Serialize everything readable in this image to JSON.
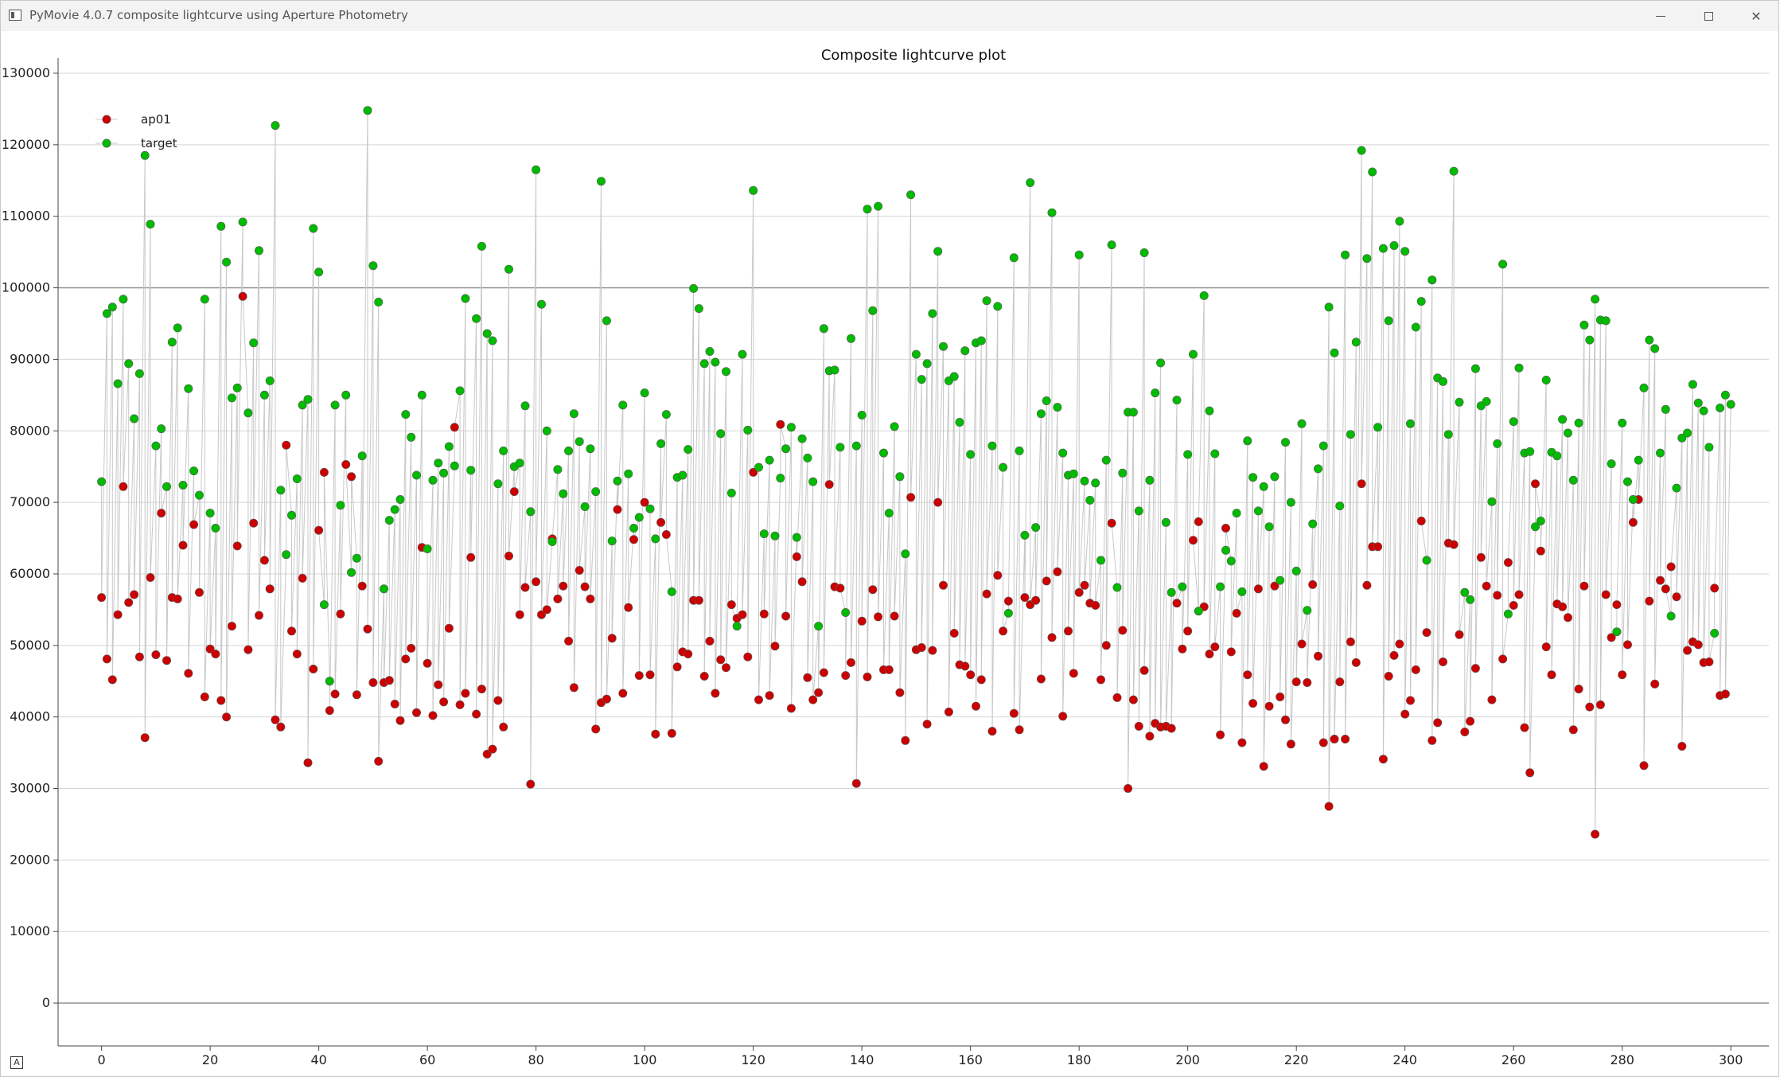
{
  "window": {
    "title": "PyMovie 4.0.7 composite lightcurve using Aperture Photometry",
    "minimize_icon": "minimize-icon",
    "maximize_icon": "maximize-icon",
    "close_icon": "close-icon",
    "close_glyph": "✕"
  },
  "status": {
    "corner_label": "A"
  },
  "chart_data": {
    "type": "scatter",
    "title": "Composite lightcurve plot",
    "xlabel": "",
    "ylabel": "",
    "xlim": [
      -8,
      307
    ],
    "ylim": [
      -6000,
      131000
    ],
    "xticks": [
      0,
      20,
      40,
      60,
      80,
      100,
      120,
      140,
      160,
      180,
      200,
      220,
      240,
      260,
      280,
      300
    ],
    "yticks": [
      0,
      10000,
      20000,
      30000,
      40000,
      50000,
      60000,
      70000,
      80000,
      90000,
      100000,
      110000,
      120000,
      130000
    ],
    "grid": true,
    "legend_position": "top-left",
    "connector_color": "#c8c8c8",
    "series": [
      {
        "name": "ap01",
        "color": "#cc0000",
        "x_start": 0,
        "values": [
          56700,
          48100,
          45200,
          54300,
          72200,
          56000,
          57100,
          48400,
          37100,
          59500,
          48700,
          68500,
          47900,
          56700,
          56500,
          64000,
          46100,
          66900,
          57400,
          42800,
          49500,
          48800,
          42300,
          40000,
          52700,
          63900,
          98800,
          49400,
          67100,
          54200,
          61900,
          57900,
          39600,
          38600,
          78000,
          52000,
          48800,
          59400,
          33600,
          46700,
          66100,
          74200,
          40900,
          43200,
          54400,
          75300,
          73600,
          43100,
          58300,
          52300,
          44800,
          33800,
          44800,
          45100,
          41800,
          39500,
          48100,
          49600,
          40600,
          63700,
          47500,
          40200,
          44500,
          42100,
          52400,
          80500,
          41700,
          43300,
          62300,
          40400,
          43900,
          34800,
          35500,
          42300,
          38600,
          62500,
          71500,
          54300,
          58100,
          30600,
          58900,
          54300,
          55000,
          64900,
          56500,
          58300,
          50600,
          44100,
          60500,
          58200,
          56500,
          38300,
          42000,
          42500,
          51000,
          69000,
          43300,
          55300,
          64800,
          45800,
          70000,
          45900,
          37600,
          67200,
          65500,
          37700,
          47000,
          49100,
          48800,
          56300,
          56300,
          45700,
          50600,
          43300,
          48000,
          46900,
          55700,
          53800,
          54300,
          48400,
          74200,
          42400,
          54400,
          43000,
          49900,
          80900,
          54100,
          41200,
          62400,
          58900,
          45500,
          42400,
          43400,
          46200,
          72500,
          58200,
          58000,
          45800,
          47600,
          30700,
          53400,
          45600,
          57800,
          54000,
          46600,
          46600,
          54100,
          43400,
          36700,
          70700,
          49400,
          49700,
          39000,
          49300,
          70000,
          58400,
          40700,
          51700,
          47300,
          47100,
          45900,
          41500,
          45200,
          57200,
          38000,
          59800,
          52000,
          56200,
          40500,
          38200,
          56700,
          55700,
          56300,
          45300,
          59000,
          51100,
          60300,
          40100,
          52000,
          46100,
          57400,
          58400,
          55900,
          55600,
          45200,
          50000,
          67100,
          42700,
          52100,
          30000,
          42400,
          38700,
          46500,
          37300,
          39100,
          38600,
          38700,
          38400,
          55900,
          49500,
          52000,
          64700,
          67300,
          55400,
          48800,
          49800,
          37500,
          66400,
          49100,
          54500,
          36400,
          45900,
          41900,
          57900,
          33100,
          41500,
          58300,
          42800,
          39600,
          36200,
          44900,
          50200,
          44800,
          58500,
          48500,
          36400,
          27500,
          36900,
          44900,
          36900,
          50500,
          47600,
          72600,
          58400,
          63800,
          63800,
          34100,
          45700,
          48600,
          50200,
          40400,
          42300,
          46600,
          67400,
          51800,
          36700,
          39200,
          47700,
          64300,
          64100,
          51500,
          37900,
          39400,
          46800,
          62300,
          58300,
          42400,
          57000,
          48100,
          61600,
          55600,
          57100,
          38500,
          32200,
          72600,
          63200,
          49800,
          45900,
          55800,
          55400,
          53900,
          38200,
          43900,
          58300,
          41400,
          23600,
          41700,
          57100,
          51100,
          55700,
          45900,
          50100,
          67200,
          70400,
          33200,
          56200,
          44600,
          59100,
          57900,
          61000,
          56800,
          35900,
          49300,
          50500,
          50100,
          47600,
          47700,
          58000,
          43000,
          43200
        ]
      },
      {
        "name": "target",
        "color": "#00bb00",
        "x_start": 0,
        "values": [
          72900,
          96400,
          97300,
          86600,
          98400,
          89400,
          81700,
          88000,
          118500,
          108900,
          77900,
          80300,
          72200,
          92400,
          94400,
          72400,
          85900,
          74400,
          71000,
          98400,
          68500,
          66400,
          108600,
          103600,
          84600,
          86000,
          109200,
          82500,
          92300,
          105200,
          85000,
          87000,
          122700,
          71700,
          62700,
          68200,
          73300,
          83600,
          84400,
          108300,
          102200,
          55700,
          45000,
          83600,
          69600,
          85000,
          60200,
          62200,
          76500,
          124800,
          103100,
          98000,
          57900,
          67500,
          69000,
          70400,
          82300,
          79100,
          73800,
          85000,
          63500,
          73100,
          75500,
          74100,
          77800,
          75100,
          85600,
          98500,
          74500,
          95700,
          105800,
          93600,
          92600,
          72600,
          77200,
          102600,
          75000,
          75500,
          83500,
          68700,
          116500,
          97700,
          80000,
          64500,
          74600,
          71200,
          77200,
          82400,
          78500,
          69400,
          77500,
          71500,
          114900,
          95400,
          64600,
          73000,
          83600,
          74000,
          66400,
          67900,
          85300,
          69100,
          64900,
          78200,
          82300,
          57500,
          73500,
          73800,
          77400,
          99900,
          97100,
          89400,
          91100,
          89600,
          79600,
          88300,
          71300,
          52700,
          90700,
          80100,
          113600,
          74900,
          65600,
          75900,
          65300,
          73400,
          77500,
          80500,
          65100,
          78900,
          76200,
          72900,
          52700,
          94300,
          88400,
          88500,
          77700,
          54600,
          92900,
          77900,
          82200,
          111000,
          96800,
          111400,
          76900,
          68500,
          80600,
          73600,
          62800,
          113000,
          90700,
          87200,
          89400,
          96400,
          105100,
          91800,
          87000,
          87600,
          81200,
          91200,
          76700,
          92300,
          92600,
          98200,
          77900,
          97400,
          74900,
          54500,
          104200,
          77200,
          65400,
          114700,
          66500,
          82400,
          84200,
          110500,
          83300,
          76900,
          73800,
          74000,
          104600,
          73000,
          70300,
          72700,
          61900,
          75900,
          106000,
          58100,
          74100,
          82600,
          82600,
          68800,
          104900,
          73100,
          85300,
          89500,
          67200,
          57400,
          84300,
          58200,
          76700,
          90700,
          54800,
          98900,
          82800,
          76800,
          58200,
          63300,
          61800,
          68500,
          57500,
          78600,
          73500,
          68800,
          72200,
          66600,
          73600,
          59100,
          78400,
          70000,
          60400,
          81000,
          54900,
          67000,
          74700,
          77900,
          97300,
          90900,
          69500,
          104600,
          79500,
          92400,
          119200,
          104100,
          116200,
          80500,
          105500,
          95400,
          105900,
          109300,
          105100,
          81000,
          94500,
          98100,
          61900,
          101100,
          87400,
          86900,
          79500,
          116300,
          84000,
          57400,
          56400,
          88700,
          83500,
          84100,
          70100,
          78200,
          103300,
          54400,
          81300,
          88800,
          76900,
          77100,
          66600,
          67400,
          87100,
          77000,
          76500,
          81600,
          79700,
          73100,
          81100,
          94800,
          92700,
          98400,
          95500,
          95400,
          75400,
          51900,
          81100,
          72900,
          70400,
          75900,
          86000,
          92700,
          91500,
          76900,
          83000,
          54100,
          72000,
          79000,
          79700,
          86500,
          83900,
          82800,
          77700,
          51700,
          83200,
          85000,
          83700
        ]
      }
    ]
  }
}
